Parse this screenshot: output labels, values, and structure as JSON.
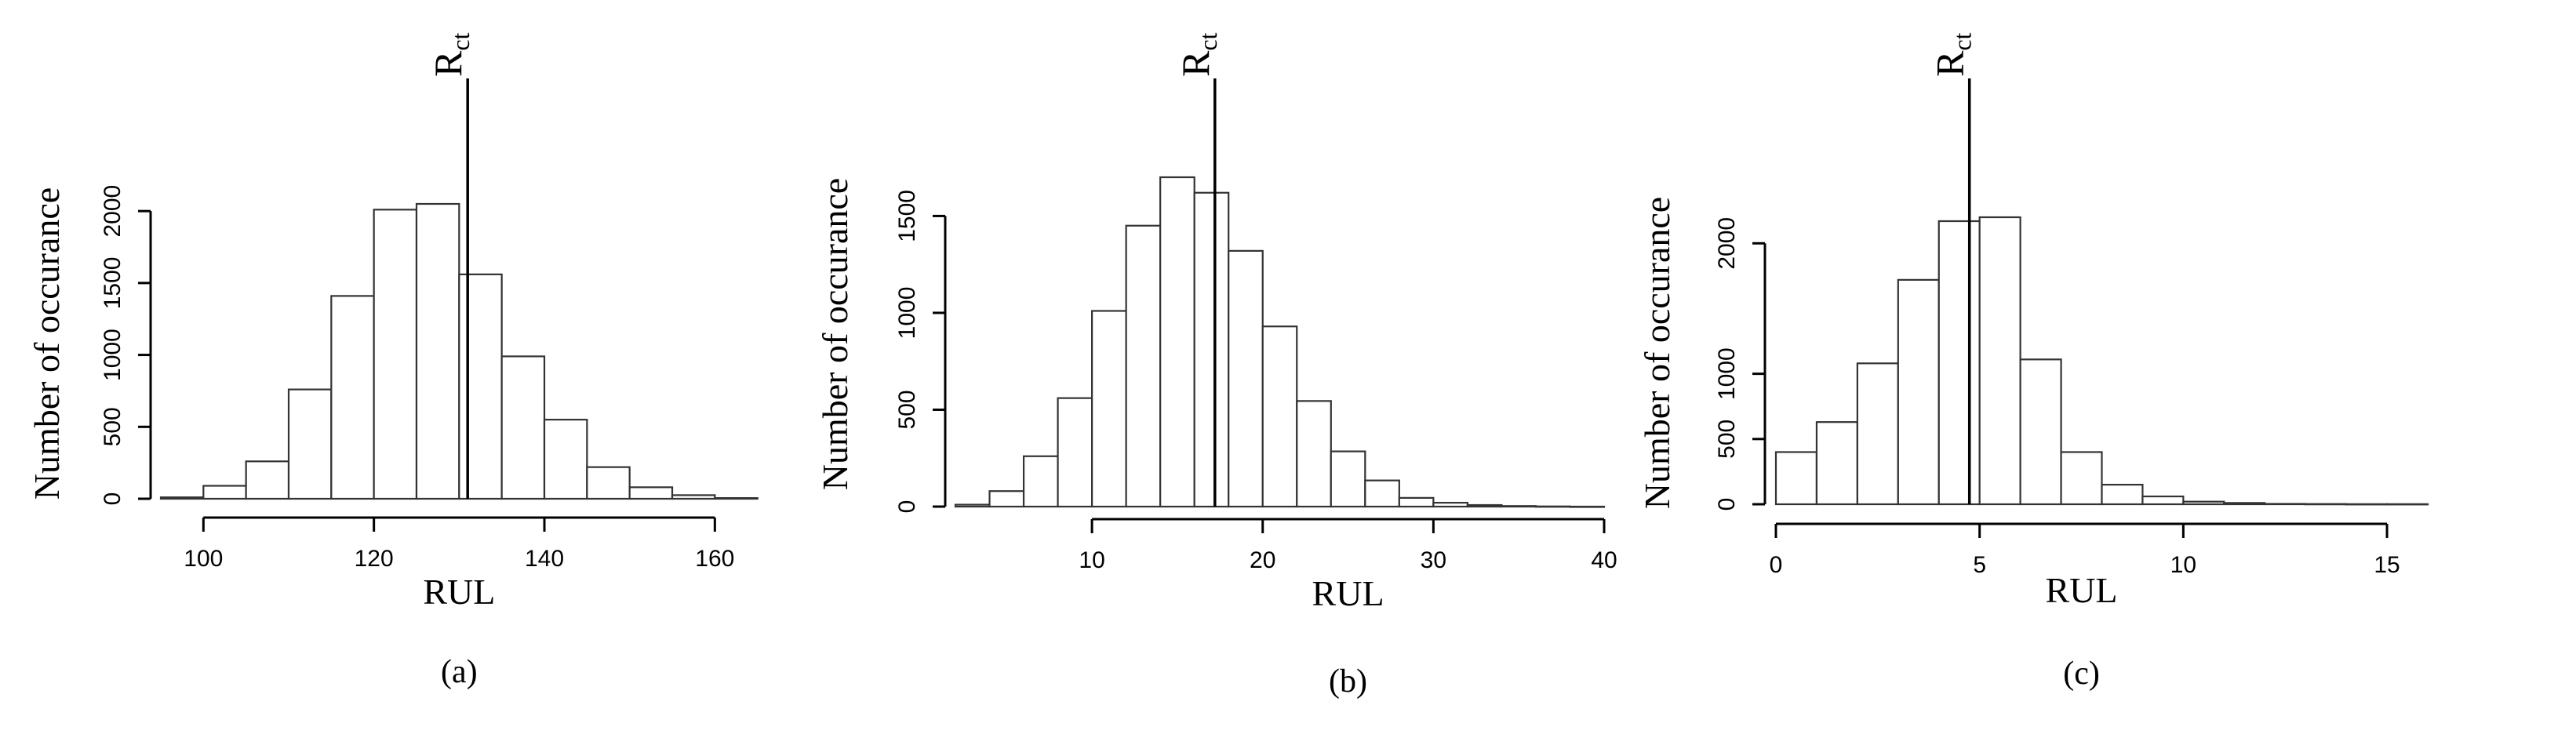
{
  "chart_data": [
    {
      "type": "bar",
      "panel_label": "(a)",
      "xlabel": "RUL",
      "ylabel": "Number of occurance",
      "marker_label": "R",
      "marker_subscript": "ct",
      "marker_x": 131,
      "bin_width": 5,
      "bin_edges_start": 95,
      "values": [
        10,
        90,
        260,
        760,
        1410,
        2010,
        2050,
        1560,
        990,
        550,
        220,
        80,
        25,
        5
      ],
      "xlim": [
        95,
        170
      ],
      "ylim": [
        0,
        2050
      ],
      "xticks": [
        100,
        120,
        140,
        160
      ],
      "yticks": [
        0,
        500,
        1000,
        1500,
        2000
      ]
    },
    {
      "type": "bar",
      "panel_label": "(b)",
      "xlabel": "RUL",
      "ylabel": "Number of occurance",
      "marker_label": "R",
      "marker_subscript": "ct",
      "marker_x": 17.2,
      "bin_width": 2,
      "bin_edges_start": 2,
      "values": [
        10,
        80,
        260,
        560,
        1010,
        1450,
        1700,
        1620,
        1320,
        930,
        545,
        285,
        135,
        45,
        20,
        8,
        3,
        1,
        0
      ],
      "xlim": [
        2,
        40
      ],
      "ylim": [
        0,
        1700
      ],
      "xticks": [
        10,
        20,
        30,
        40
      ],
      "yticks": [
        0,
        500,
        1000,
        1500
      ]
    },
    {
      "type": "bar",
      "panel_label": "(c)",
      "xlabel": "RUL",
      "ylabel": "Number of occurance",
      "marker_label": "R",
      "marker_subscript": "ct",
      "marker_x": 4.75,
      "bin_width": 1,
      "bin_edges_start": 0,
      "values": [
        400,
        630,
        1080,
        1720,
        2170,
        2200,
        1110,
        400,
        150,
        60,
        20,
        10,
        3,
        2,
        1,
        1
      ],
      "xlim": [
        0,
        16
      ],
      "ylim": [
        0,
        2200
      ],
      "xticks": [
        0,
        5,
        10,
        15
      ],
      "yticks": [
        0,
        500,
        1000,
        2000
      ]
    }
  ]
}
